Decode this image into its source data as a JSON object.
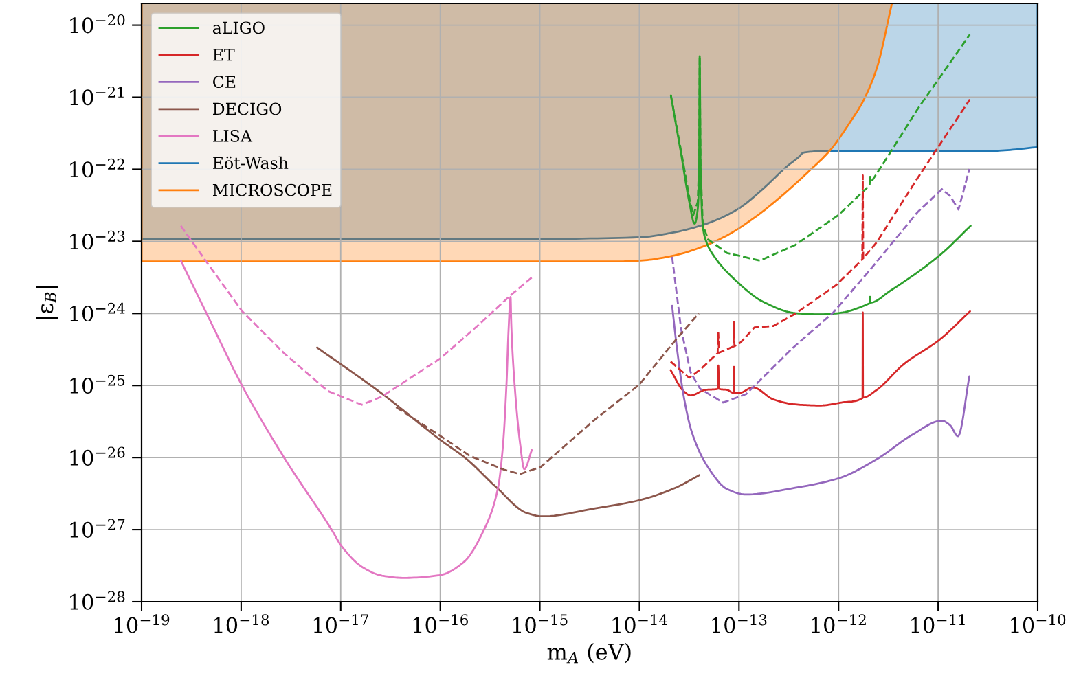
{
  "chart_data": {
    "type": "line",
    "xlabel": "m$_{A}$ (eV)",
    "ylabel": "|ε$_{B}$|",
    "log": "xy",
    "xlim": [
      1e-19,
      1e-10
    ],
    "ylim": [
      1e-28,
      2e-20
    ],
    "xticks": [
      {
        "value": 1e-19,
        "label": "10$^{−19}$"
      },
      {
        "value": 1e-18,
        "label": "10$^{−18}$"
      },
      {
        "value": 1e-17,
        "label": "10$^{−17}$"
      },
      {
        "value": 1e-16,
        "label": "10$^{−16}$"
      },
      {
        "value": 1e-15,
        "label": "10$^{−15}$"
      },
      {
        "value": 1e-14,
        "label": "10$^{−14}$"
      },
      {
        "value": 1e-13,
        "label": "10$^{−13}$"
      },
      {
        "value": 1e-12,
        "label": "10$^{−12}$"
      },
      {
        "value": 1e-11,
        "label": "10$^{−11}$"
      },
      {
        "value": 1e-10,
        "label": "10$^{−10}$"
      }
    ],
    "yticks": [
      {
        "value": 1e-28,
        "label": "10$^{−28}$"
      },
      {
        "value": 1e-27,
        "label": "10$^{−27}$"
      },
      {
        "value": 1e-26,
        "label": "10$^{−26}$"
      },
      {
        "value": 1e-25,
        "label": "10$^{−25}$"
      },
      {
        "value": 1e-24,
        "label": "10$^{−24}$"
      },
      {
        "value": 1e-23,
        "label": "10$^{−23}$"
      },
      {
        "value": 1e-22,
        "label": "10$^{−22}$"
      },
      {
        "value": 1e-21,
        "label": "10$^{−21}$"
      },
      {
        "value": 1e-20,
        "label": "10$^{−20}$"
      }
    ],
    "grid": true,
    "legend": "top left",
    "series": [
      {
        "name": "aLIGO",
        "color": "#2ca02c",
        "line_style": "solid",
        "x": [
          2.07e-14,
          2.61e-14,
          3.16e-14,
          3.58e-14,
          3.87e-14,
          3.98e-14,
          4.03e-14,
          4.11e-14,
          4.33e-14,
          4.6e-14,
          5.56e-14,
          9.8e-14,
          1.73e-13,
          3.67e-13,
          6.45e-13,
          1e-12,
          2e-12,
          2.06e-12,
          2.07e-12,
          2.08e-12,
          3.3e-12,
          1.03e-11,
          2.12e-11
        ],
        "values": [
          1.06e-21,
          1.7e-22,
          3.58e-23,
          1.76e-23,
          3e-23,
          1.21e-22,
          3.7e-21,
          1.21e-22,
          1.64e-23,
          1.07e-23,
          6.36e-24,
          2.67e-24,
          1.46e-24,
          1.01e-24,
          9.7e-25,
          1.01e-24,
          1.36e-24,
          1.39e-24,
          1.7e-24,
          1.41e-24,
          2.06e-24,
          6.36e-24,
          1.64e-23
        ]
      },
      {
        "name": "ET",
        "color": "#d62728",
        "line_style": "solid",
        "x": [
          2.06e-14,
          2.79e-14,
          3.27e-14,
          4.6e-14,
          6.1e-14,
          6.2e-14,
          6.3e-14,
          7.6e-14,
          8.8e-14,
          8.9e-14,
          9e-14,
          1.01e-13,
          1.38e-13,
          2.22e-13,
          3.67e-13,
          6.45e-13,
          1.07e-12,
          1.74e-12,
          1.75e-12,
          1.76e-12,
          2.42e-12,
          4.5e-12,
          1.03e-11,
          2.09e-11
        ],
        "values": [
          1.63e-25,
          8.3e-26,
          7.3e-26,
          8.7e-26,
          9e-26,
          1.89e-25,
          9e-26,
          8.7e-26,
          7.9e-26,
          1.81e-25,
          7.9e-26,
          7.9e-26,
          9.4e-26,
          6.4e-26,
          5.47e-26,
          5.28e-26,
          5.8e-26,
          6.7e-26,
          1.03e-24,
          6.8e-26,
          8.7e-26,
          1.97e-25,
          4.3e-25,
          1.07e-24
        ]
      },
      {
        "name": "CE",
        "color": "#9467bd",
        "line_style": "solid",
        "x": [
          2.13e-14,
          2.38e-14,
          2.79e-14,
          3.36e-14,
          4.9e-14,
          7.6e-14,
          1.18e-13,
          3.67e-13,
          1e-12,
          2.42e-12,
          5.5e-12,
          1.09e-11,
          1.32e-11,
          1.58e-11,
          2.06e-11
        ],
        "values": [
          1.28e-24,
          3.3e-25,
          6.98e-26,
          2.25e-26,
          7.3e-27,
          3.65e-27,
          3.07e-27,
          3.8e-27,
          5.15e-27,
          9.5e-27,
          2.07e-26,
          3.25e-26,
          2.8e-26,
          1.98e-26,
          1.34e-25
        ]
      },
      {
        "name": "DECIGO",
        "color": "#8c564b",
        "line_style": "solid",
        "x": [
          5.8e-18,
          2.6e-17,
          1e-16,
          1.83e-16,
          3.7e-16,
          7.4e-16,
          1.07e-15,
          3.6e-15,
          9.9e-15,
          2.3e-14,
          4e-14
        ],
        "values": [
          3.36e-25,
          7.7e-26,
          1.76e-26,
          9.6e-27,
          3.8e-27,
          1.7e-27,
          1.53e-27,
          1.97e-27,
          2.55e-27,
          3.8e-27,
          5.7e-27
        ]
      },
      {
        "name": "LISA",
        "color": "#e377c2",
        "line_style": "solid",
        "x": [
          2.48e-19,
          5e-19,
          1.02e-18,
          2.7e-18,
          8.1e-18,
          1.02e-17,
          1.68e-17,
          2.6e-17,
          4.3e-17,
          9.8e-17,
          1.72e-16,
          2.67e-16,
          3.8e-16,
          4.27e-16,
          4.62e-16,
          4.85e-16,
          5.08e-16,
          5.16e-16,
          5.5e-16,
          6.35e-16,
          6.98e-16,
          8.3e-16
        ],
        "values": [
          5.4e-24,
          7.4e-25,
          1e-25,
          1e-26,
          1e-27,
          5.9e-28,
          2.97e-28,
          2.3e-28,
          2.14e-28,
          2.33e-28,
          3.54e-28,
          9.2e-28,
          3.8e-27,
          1.52e-26,
          1.02e-25,
          5.9e-25,
          1.69e-24,
          7.4e-25,
          1.36e-25,
          1.52e-26,
          6.9e-27,
          1.27e-26
        ]
      },
      {
        "name": "Eöt-Wash",
        "color": "#1f77b4",
        "type": "area",
        "line_style": "solid",
        "x": [
          1e-19,
          1e-15,
          1.02e-14,
          2.16e-14,
          4.07e-14,
          6.7e-14,
          1.01e-13,
          1.73e-13,
          3.04e-13,
          4.03e-13,
          4.43e-13,
          6.9e-13,
          2.19e-11,
          4.1e-11,
          1e-10
        ],
        "values": [
          1.07e-23,
          1.08e-23,
          1.14e-23,
          1.32e-23,
          1.64e-23,
          2.13e-23,
          2.89e-23,
          5.3e-23,
          1.1e-22,
          1.5e-22,
          1.7e-22,
          1.78e-22,
          1.77e-22,
          1.81e-22,
          2.03e-22
        ]
      },
      {
        "name": "MICROSCOPE",
        "color": "#ff7f0e",
        "type": "area",
        "line_style": "solid",
        "x": [
          1e-19,
          6.2e-15,
          1.02e-14,
          2.16e-14,
          4.07e-14,
          7.6e-14,
          1.43e-13,
          2.68e-13,
          5e-13,
          8.3e-13,
          1.29e-12,
          1.77e-12,
          2.42e-12,
          3.42e-12
        ],
        "values": [
          5.26e-24,
          5.26e-24,
          5.4e-24,
          6.3e-24,
          8.2e-24,
          1.21e-23,
          2.13e-23,
          4.26e-23,
          9.3e-23,
          1.86e-22,
          4.4e-22,
          8.9e-22,
          2.52e-21,
          1.94e-20
        ]
      },
      {
        "color": "#2ca02c",
        "line_style": "dashed",
        "x": [
          2.07e-14,
          2.62e-14,
          3.2e-14,
          3.47e-14,
          3.85e-14,
          3.98e-14,
          4.03e-14,
          4.11e-14,
          4.33e-14,
          4.9e-14,
          7.6e-14,
          1.62e-13,
          3.67e-13,
          1e-12,
          2.05e-12,
          2.07e-12,
          2.09e-12,
          3.3e-12,
          6.2e-12,
          2.08e-11
        ],
        "values": [
          1.06e-21,
          1.8e-22,
          3.8e-23,
          2.3e-23,
          3.5e-23,
          1.3e-22,
          3.7e-21,
          1.21e-22,
          1.7e-23,
          1.06e-23,
          6.9e-24,
          5.4e-24,
          8.9e-24,
          2.32e-23,
          6e-23,
          8.2e-23,
          6.4e-23,
          1.7e-22,
          6.8e-22,
          7.4e-21
        ]
      },
      {
        "color": "#d62728",
        "line_style": "dashed",
        "x": [
          2.06e-14,
          3.16e-14,
          4.07e-14,
          6.1e-14,
          6.2e-14,
          6.3e-14,
          8.8e-14,
          8.9e-14,
          9e-14,
          1.04e-13,
          1.43e-13,
          2.22e-13,
          3.67e-13,
          9.4e-13,
          1.73e-12,
          1.75e-12,
          1.77e-12,
          2.42e-12,
          6.2e-12,
          2.08e-11
        ],
        "values": [
          2.15e-25,
          1.28e-25,
          1.66e-25,
          2.8e-25,
          5.37e-25,
          2.85e-25,
          3.48e-25,
          7.6e-25,
          3.5e-25,
          3.96e-25,
          6.4e-25,
          6.7e-25,
          9.9e-25,
          2.45e-24,
          5.6e-24,
          8.2e-23,
          5.8e-24,
          9.75e-24,
          7.5e-23,
          9.3e-22
        ]
      },
      {
        "color": "#9467bd",
        "line_style": "dashed",
        "x": [
          2.13e-14,
          2.62e-14,
          3.27e-14,
          4.07e-14,
          6.93e-14,
          1.18e-13,
          3.45e-13,
          8.85e-13,
          2e-12,
          6.2e-12,
          1.09e-11,
          1.32e-11,
          1.6e-11,
          2.06e-11
        ],
        "values": [
          6.1e-24,
          6.1e-25,
          1.52e-25,
          9e-26,
          5.8e-26,
          7.6e-26,
          3.3e-25,
          1.03e-24,
          3.8e-24,
          2.53e-23,
          5.3e-23,
          4.26e-23,
          2.76e-23,
          1.01e-22
        ]
      },
      {
        "color": "#8c564b",
        "line_style": "dashed",
        "x": [
          3.6e-17,
          1e-16,
          1.97e-16,
          4.36e-16,
          6.3e-16,
          1.02e-15,
          3.6e-15,
          9.9e-15,
          2.3e-14,
          3.94e-14
        ],
        "values": [
          5e-26,
          2e-26,
          1.06e-26,
          6.8e-27,
          5.9e-27,
          7.4e-27,
          3.4e-26,
          1.02e-25,
          4.25e-25,
          1e-24
        ]
      },
      {
        "color": "#e377c2",
        "line_style": "dashed",
        "x": [
          2.48e-19,
          4.4e-19,
          1.02e-18,
          2.7e-18,
          7.4e-18,
          1.63e-17,
          2.6e-17,
          1e-16,
          2.36e-16,
          5e-16,
          8.3e-16
        ],
        "values": [
          1.64e-23,
          5.4e-24,
          1.08e-24,
          2.8e-25,
          8.4e-26,
          5.4e-26,
          7.05e-26,
          2.37e-25,
          6.7e-25,
          1.75e-24,
          3.15e-24
        ]
      }
    ]
  }
}
